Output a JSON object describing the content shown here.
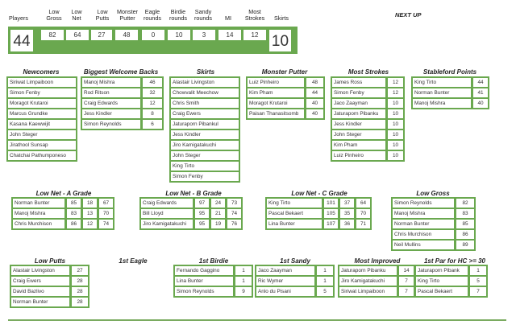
{
  "header": {
    "stats": [
      {
        "label": "Players",
        "value": "44",
        "style": "big"
      },
      {
        "label": "Low Gross",
        "value": "82"
      },
      {
        "label": "Low Net",
        "value": "64"
      },
      {
        "label": "Low Putts",
        "value": "27"
      },
      {
        "label": "Monster Putter",
        "value": "48"
      },
      {
        "label": "Eagle rounds",
        "value": "0"
      },
      {
        "label": "Birdie rounds",
        "value": "10"
      },
      {
        "label": "Sandy rounds",
        "value": "3"
      },
      {
        "label": "MI",
        "value": "14"
      },
      {
        "label": "Most Strokes",
        "value": "12"
      },
      {
        "label": "Skirts",
        "value": "10",
        "style": "big"
      }
    ],
    "next_up": "NEXT UP"
  },
  "sections": {
    "newcomers": {
      "title": "Newcomers",
      "rows": [
        [
          "Siriwat Limpaiboon"
        ],
        [
          "Simon Fenby"
        ],
        [
          "Moragot Krutaroi"
        ],
        [
          "Marcus Grundke"
        ],
        [
          "Kasana Kaewwijit"
        ],
        [
          "John Steger"
        ],
        [
          "Jirathool Sunsap"
        ],
        [
          "Chatchai Pathumponeso"
        ]
      ]
    },
    "welcome_backs": {
      "title": "Biggest Welcome Backs",
      "rows": [
        [
          "Manoj Mishra",
          "46"
        ],
        [
          "Rod Ritson",
          "32"
        ],
        [
          "Craig Edwards",
          "12"
        ],
        [
          "Jess Kindler",
          "8"
        ],
        [
          "Simon Reynolds",
          "6"
        ]
      ]
    },
    "skirts": {
      "title": "Skirts",
      "rows": [
        [
          "Alastair Livingston"
        ],
        [
          "Chowvalit Meechow"
        ],
        [
          "Chris Smith"
        ],
        [
          "Craig Ewers"
        ],
        [
          "Jaturaporn Pibankul"
        ],
        [
          "Jess Kindler"
        ],
        [
          "Jiro Kamigatakuchi"
        ],
        [
          "John Steger"
        ],
        [
          "King Tirto"
        ],
        [
          "Simon Fenby"
        ]
      ]
    },
    "monster_putter": {
      "title": "Monster Putter",
      "rows": [
        [
          "Luiz Pinheiro",
          "48"
        ],
        [
          "Kim Pham",
          "44"
        ],
        [
          "Moragot Krutaroi",
          "40"
        ],
        [
          "Paisan Thanasitsomb",
          "40"
        ]
      ]
    },
    "most_strokes": {
      "title": "Most Strokes",
      "rows": [
        [
          "James Ross",
          "12"
        ],
        [
          "Simon Fenby",
          "12"
        ],
        [
          "Jaco Zaayman",
          "10"
        ],
        [
          "Jaturaporn Pibanku",
          "10"
        ],
        [
          "Jess Kindler",
          "10"
        ],
        [
          "John Steger",
          "10"
        ],
        [
          "Kim Pham",
          "10"
        ],
        [
          "Luiz Pinheiro",
          "10"
        ]
      ]
    },
    "stableford": {
      "title": "Stableford Points",
      "rows": [
        [
          "King Tirto",
          "44"
        ],
        [
          "Norman Bunter",
          "41"
        ],
        [
          "Manoj Mishra",
          "40"
        ]
      ]
    },
    "low_net_a": {
      "title": "Low Net - A Grade",
      "rows": [
        [
          "Norman Bunter",
          "85",
          "18",
          "67"
        ],
        [
          "Manoj Mishra",
          "83",
          "13",
          "70"
        ],
        [
          "Chris Murchison",
          "86",
          "12",
          "74"
        ]
      ]
    },
    "low_net_b": {
      "title": "Low Net - B Grade",
      "rows": [
        [
          "Craig Edwards",
          "97",
          "24",
          "73"
        ],
        [
          "Bill Lloyd",
          "95",
          "21",
          "74"
        ],
        [
          "Jiro Kamigatakuchi",
          "95",
          "19",
          "76"
        ]
      ]
    },
    "low_net_c": {
      "title": "Low Net - C Grade",
      "rows": [
        [
          "King Tirto",
          "101",
          "37",
          "64"
        ],
        [
          "Pascal Bekaert",
          "105",
          "35",
          "70"
        ],
        [
          "Lina Bunter",
          "107",
          "36",
          "71"
        ]
      ]
    },
    "low_gross": {
      "title": "Low Gross",
      "rows": [
        [
          "Simon Reynolds",
          "82"
        ],
        [
          "Manoj Mishra",
          "83"
        ],
        [
          "Norman Bunter",
          "85"
        ],
        [
          "Chris Murchison",
          "86"
        ],
        [
          "Neil Mullins",
          "89"
        ]
      ]
    },
    "low_putts": {
      "title": "Low Putts",
      "rows": [
        [
          "Alastair Livingston",
          "27"
        ],
        [
          "Craig Ewers",
          "28"
        ],
        [
          "David Bazlivo",
          "28"
        ],
        [
          "Norman Bunter",
          "28"
        ]
      ]
    },
    "first_eagle": {
      "title": "1st Eagle",
      "rows": []
    },
    "first_birdie": {
      "title": "1st Birdie",
      "rows": [
        [
          "Fernando Gaggino",
          "1"
        ],
        [
          "Lina Bunter",
          "1"
        ],
        [
          "Simon Reynolds",
          "9"
        ]
      ]
    },
    "first_sandy": {
      "title": "1st Sandy",
      "rows": [
        [
          "Jaco Zaayman",
          "1"
        ],
        [
          "Ric Wymer",
          "1"
        ],
        [
          "Anlo du Pisani",
          "5"
        ]
      ]
    },
    "most_improved": {
      "title": "Most Improved",
      "rows": [
        [
          "Jaturaporn Pibanku",
          "14"
        ],
        [
          "Jiro Kamigatakuchi",
          "7"
        ],
        [
          "Siriwat Limpaiboon",
          "7"
        ]
      ]
    },
    "first_par_hc30": {
      "title": "1st Par for HC >= 30",
      "rows": [
        [
          "Jaturaporn Pibank",
          "1"
        ],
        [
          "King Tirto",
          "5"
        ],
        [
          "Pascal Bekaert",
          "7"
        ]
      ]
    }
  },
  "colors": {
    "accent_green": "#6aa84f",
    "cell_bg": "#ffffff",
    "text": "#222222"
  }
}
